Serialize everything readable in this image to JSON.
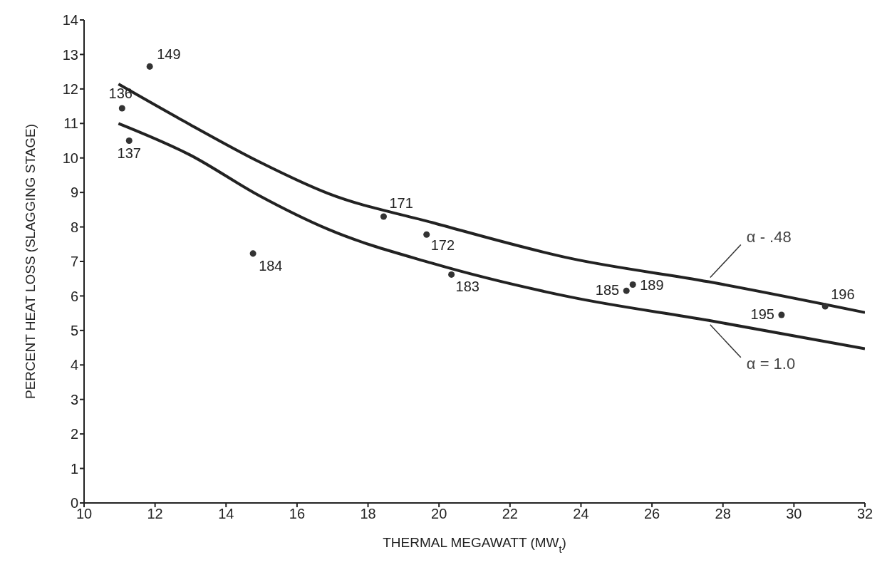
{
  "chart_data": {
    "type": "scatter",
    "xlabel": "THERMAL MEGAWATT (MW$_{t}$)",
    "ylabel": "PERCENT HEAT LOSS (SLAGGING STAGE)",
    "xlim": [
      10,
      32
    ],
    "xticks": [
      10,
      12,
      14,
      16,
      18,
      20,
      22,
      24,
      26,
      28,
      30,
      32
    ],
    "ylim": [
      0,
      14
    ],
    "yticks": [
      0,
      1,
      2,
      3,
      4,
      5,
      6,
      7,
      8,
      9,
      10,
      11,
      12,
      13,
      14
    ],
    "series": [
      {
        "marker": "circle",
        "color": "#333333",
        "x": [
          11.07,
          11.85,
          11.27,
          14.76,
          18.44,
          19.65,
          20.35,
          25.28,
          25.46,
          29.65,
          30.88
        ],
        "values": [
          11.44,
          12.65,
          10.5,
          7.23,
          8.3,
          7.78,
          6.62,
          6.15,
          6.33,
          5.45,
          5.7
        ]
      },
      {
        "type": "line",
        "marker": "none",
        "name": "α - .48",
        "color": "#222222",
        "x": [
          10.97,
          12.98,
          14.93,
          16.88,
          19.8,
          23.7,
          27.6,
          32
        ],
        "values": [
          12.14,
          10.97,
          9.89,
          8.97,
          8.13,
          7.09,
          6.41,
          5.52
        ]
      },
      {
        "type": "line",
        "marker": "none",
        "name": "α = 1.0",
        "color": "#222222",
        "x": [
          10.97,
          12.98,
          14.93,
          16.88,
          19.8,
          23.7,
          27.6,
          32
        ],
        "values": [
          11.0,
          10.09,
          8.91,
          7.93,
          6.95,
          5.97,
          5.29,
          4.47
        ]
      }
    ],
    "annotations": [
      {
        "text": "136",
        "x": 11.07,
        "y": 11.44
      },
      {
        "text": "149",
        "x": 11.85,
        "y": 12.65
      },
      {
        "text": "137",
        "x": 11.27,
        "y": 10.5
      },
      {
        "text": "184",
        "x": 14.76,
        "y": 7.23
      },
      {
        "text": "171",
        "x": 18.44,
        "y": 8.3
      },
      {
        "text": "172",
        "x": 19.65,
        "y": 7.78
      },
      {
        "text": "183",
        "x": 20.35,
        "y": 6.62
      },
      {
        "text": "185",
        "x": 25.28,
        "y": 6.15
      },
      {
        "text": "189",
        "x": 25.46,
        "y": 6.33
      },
      {
        "text": "195",
        "x": 29.65,
        "y": 5.45
      },
      {
        "text": "196",
        "x": 30.88,
        "y": 5.7
      }
    ]
  }
}
